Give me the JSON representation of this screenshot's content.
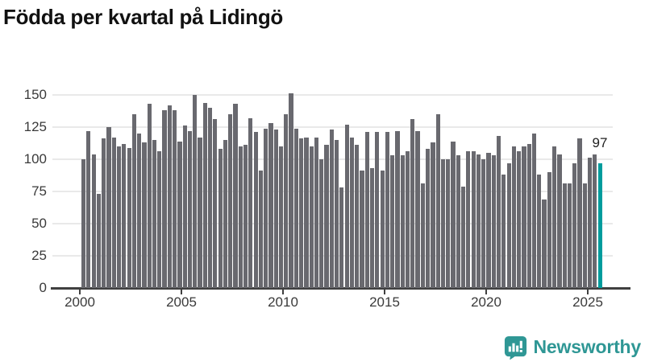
{
  "header": {
    "title": "Födda per kvartal på Lidingö"
  },
  "chart_data": {
    "type": "bar",
    "title": "Födda per kvartal på Lidingö",
    "frequency": "quarterly",
    "x_start": "2000-Q1",
    "x_end": "2025-Q3",
    "values": [
      100,
      122,
      104,
      73,
      116,
      125,
      117,
      110,
      112,
      109,
      135,
      120,
      113,
      143,
      115,
      106,
      138,
      142,
      138,
      114,
      126,
      122,
      150,
      117,
      144,
      140,
      131,
      108,
      115,
      135,
      143,
      110,
      111,
      132,
      121,
      91,
      124,
      128,
      123,
      110,
      135,
      151,
      124,
      116,
      117,
      110,
      117,
      100,
      111,
      123,
      115,
      78,
      127,
      117,
      111,
      91,
      121,
      93,
      121,
      91,
      121,
      103,
      122,
      103,
      106,
      131,
      122,
      81,
      108,
      113,
      135,
      100,
      100,
      114,
      103,
      79,
      106,
      106,
      104,
      100,
      105,
      103,
      118,
      88,
      97,
      110,
      106,
      110,
      112,
      120,
      88,
      69,
      90,
      110,
      104,
      81,
      81,
      97,
      116,
      81,
      101,
      104,
      97
    ],
    "y_ticks": [
      0,
      25,
      50,
      75,
      100,
      125,
      150
    ],
    "x_tick_labels": [
      "2000",
      "2005",
      "2010",
      "2015",
      "2020",
      "2025"
    ],
    "ylim": [
      0,
      150
    ],
    "grid": "horizontal",
    "legend": "none",
    "bar_color": "#69696f",
    "highlight_color": "#009c9d",
    "highlight": {
      "index": 102,
      "x": "2025-Q3",
      "value": 97,
      "label": "97"
    }
  },
  "footer": {
    "brand": "Newsworthy",
    "brand_color": "#2f9795",
    "logo_icon": "newsworthy-speech-bubble-bar-chart-icon"
  }
}
